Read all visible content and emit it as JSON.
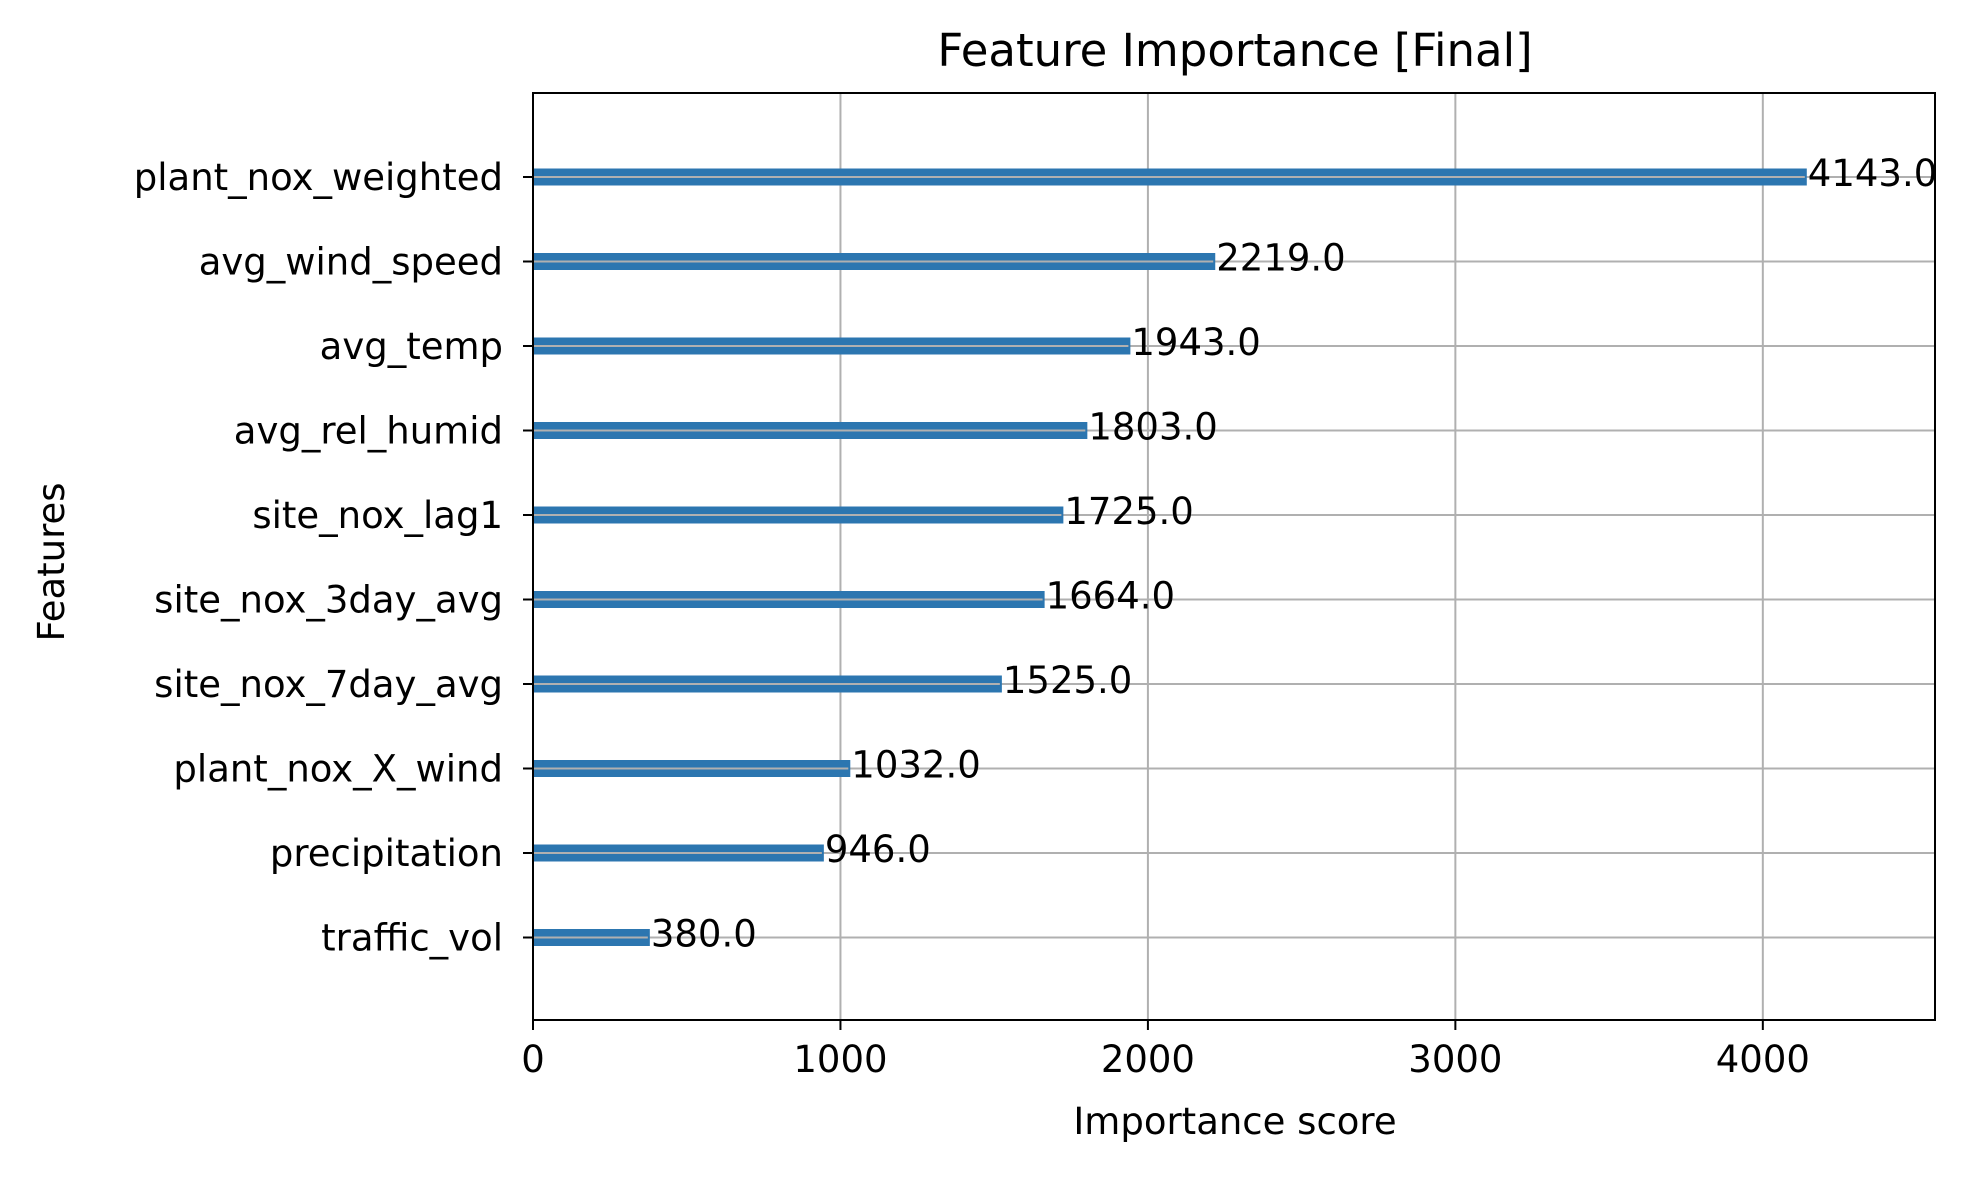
{
  "chart_data": {
    "type": "bar",
    "orientation": "horizontal",
    "title": "Feature Importance [Final]",
    "xlabel": "Importance score",
    "ylabel": "Features",
    "xlim": [
      0,
      4560
    ],
    "xticks": [
      0,
      1000,
      2000,
      3000,
      4000
    ],
    "grid": true,
    "categories": [
      "plant_nox_weighted",
      "avg_wind_speed",
      "avg_temp",
      "avg_rel_humid",
      "site_nox_lag1",
      "site_nox_3day_avg",
      "site_nox_7day_avg",
      "plant_nox_X_wind",
      "precipitation",
      "traffic_vol"
    ],
    "values": [
      4143.0,
      2219.0,
      1943.0,
      1803.0,
      1725.0,
      1664.0,
      1525.0,
      1032.0,
      946.0,
      380.0
    ],
    "data_labels": [
      "4143.0",
      "2219.0",
      "1943.0",
      "1803.0",
      "1725.0",
      "1664.0",
      "1525.0",
      "1032.0",
      "946.0",
      "380.0"
    ],
    "colors": {
      "bar": "#2c76b0",
      "grid": "#b0b0b0",
      "axes": "#000000"
    }
  }
}
